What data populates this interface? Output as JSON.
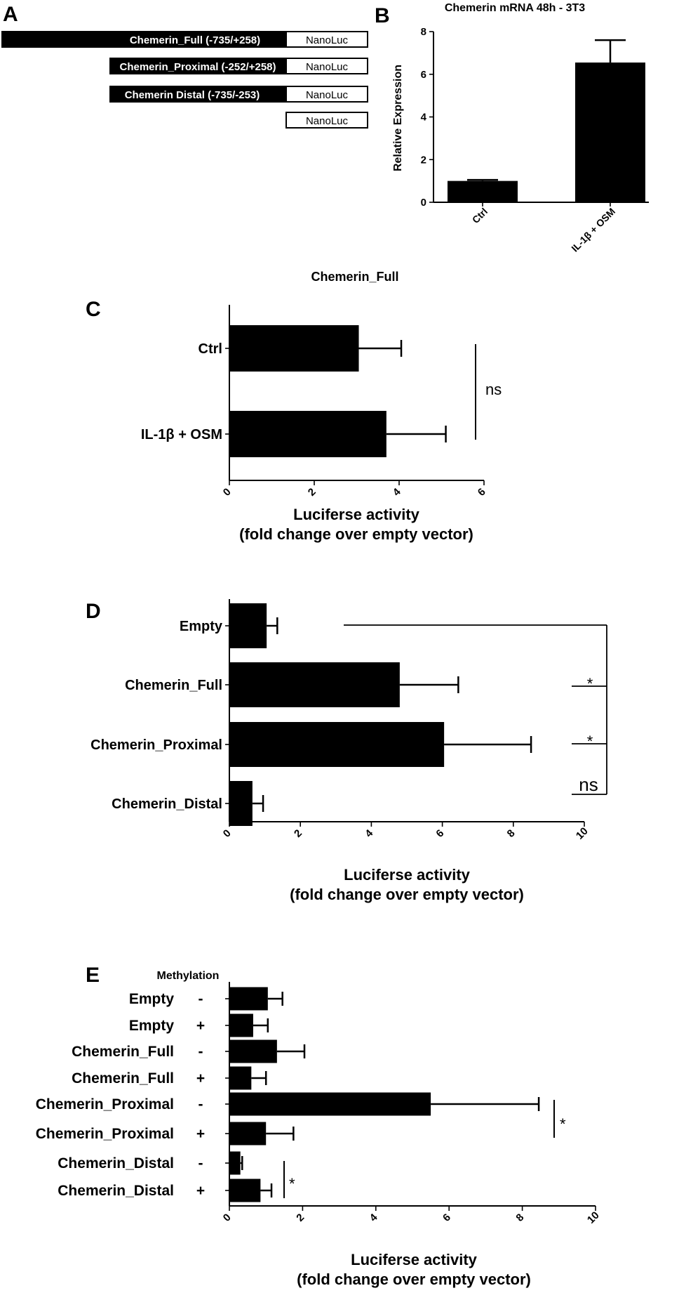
{
  "panel_labels": [
    "A",
    "B",
    "C",
    "D",
    "E"
  ],
  "panel_a": {
    "constructs": [
      {
        "label": "Chemerin_Full (-735/+258)",
        "reporter": "NanoLuc"
      },
      {
        "label": "Chemerin_Proximal (-252/+258)",
        "reporter": "NanoLuc"
      },
      {
        "label": "Chemerin Distal (-735/-253)",
        "reporter": "NanoLuc"
      },
      {
        "label": "",
        "reporter": "NanoLuc"
      }
    ]
  },
  "chart_data": [
    {
      "panel": "B",
      "type": "bar",
      "title": "Chemerin mRNA 48h - 3T3",
      "xlabel": "",
      "ylabel": "Relative Expression",
      "categories": [
        "Ctrl",
        "IL-1β + OSM"
      ],
      "values": [
        1.0,
        6.55
      ],
      "errors": [
        0.05,
        1.05
      ],
      "ylim": [
        0,
        8
      ],
      "yticks": [
        0,
        2,
        4,
        6,
        8
      ],
      "color": "#000000"
    },
    {
      "panel": "C",
      "type": "bar",
      "orientation": "horizontal",
      "title": "Chemerin_Full",
      "xlabel": "Luciferse activity\n(fold change over empty vector)",
      "ylabel": "",
      "categories": [
        "Ctrl",
        "IL-1β + OSM"
      ],
      "values": [
        3.05,
        3.7
      ],
      "errors": [
        1.0,
        1.4
      ],
      "xlim": [
        0,
        6
      ],
      "xticks": [
        0,
        2,
        4,
        6
      ],
      "annotations": [
        {
          "text": "ns",
          "rows": [
            0,
            1
          ]
        }
      ]
    },
    {
      "panel": "D",
      "type": "bar",
      "orientation": "horizontal",
      "title": "",
      "xlabel": "Luciferse activity\n(fold change over empty vector)",
      "ylabel": "",
      "categories": [
        "Empty",
        "Chemerin_Full",
        "Chemerin_Proximal",
        "Chemerin_Distal"
      ],
      "values": [
        1.05,
        4.8,
        6.05,
        0.65
      ],
      "errors": [
        0.3,
        1.65,
        2.45,
        0.3
      ],
      "xlim": [
        0,
        10
      ],
      "xticks": [
        0,
        2,
        4,
        6,
        8,
        10
      ],
      "annotations": [
        {
          "text": "*",
          "compare": [
            "Empty",
            "Chemerin_Full"
          ]
        },
        {
          "text": "*",
          "compare": [
            "Empty",
            "Chemerin_Proximal"
          ]
        },
        {
          "text": "ns",
          "compare": [
            "Empty",
            "Chemerin_Distal"
          ]
        }
      ]
    },
    {
      "panel": "E",
      "type": "bar",
      "orientation": "horizontal",
      "title": "",
      "xlabel": "Luciferse activity\n(fold change over empty vector)",
      "ylabel": "",
      "column_header": "Methylation",
      "categories": [
        "Empty",
        "Empty",
        "Chemerin_Full",
        "Chemerin_Full",
        "Chemerin_Proximal",
        "Chemerin_Proximal",
        "Chemerin_Distal",
        "Chemerin_Distal"
      ],
      "methylation": [
        "-",
        "+",
        "-",
        "+",
        "-",
        "+",
        "-",
        "+"
      ],
      "values": [
        1.05,
        0.65,
        1.3,
        0.6,
        5.5,
        1.0,
        0.3,
        0.85
      ],
      "errors": [
        0.4,
        0.4,
        0.75,
        0.4,
        2.95,
        0.75,
        0.05,
        0.3
      ],
      "xlim": [
        0,
        10
      ],
      "xticks": [
        0,
        2,
        4,
        6,
        8,
        10
      ],
      "annotations": [
        {
          "text": "*",
          "rows": [
            4,
            5
          ]
        },
        {
          "text": "*",
          "rows": [
            6,
            7
          ]
        }
      ]
    }
  ]
}
